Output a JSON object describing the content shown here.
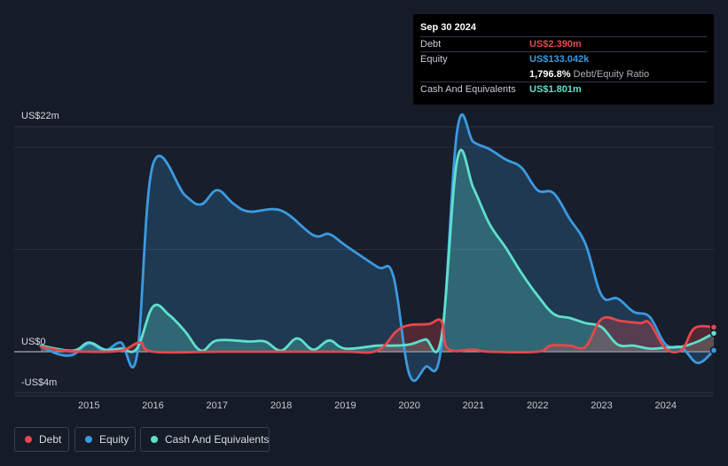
{
  "tooltip": {
    "date": "Sep 30 2024",
    "rows": [
      {
        "label": "Debt",
        "value": "US$2.390m",
        "color": "#e5484d"
      },
      {
        "label": "Equity",
        "value": "US$133.042k",
        "color": "#3b9ae1"
      },
      {
        "label": "",
        "value": "1,796.8%",
        "note": "Debt/Equity Ratio",
        "color": "#ffffff"
      },
      {
        "label": "Cash And Equivalents",
        "value": "US$1.801m",
        "color": "#5ee0cc"
      }
    ]
  },
  "legend": [
    {
      "label": "Debt",
      "color": "#e5484d"
    },
    {
      "label": "Equity",
      "color": "#3b9ae1"
    },
    {
      "label": "Cash And Equivalents",
      "color": "#5ee0cc"
    }
  ],
  "chart_data": {
    "type": "area",
    "y_tick_labels": [
      "US$22m",
      "US$0",
      "-US$4m"
    ],
    "x_tick_labels": [
      "2015",
      "2016",
      "2017",
      "2018",
      "2019",
      "2020",
      "2021",
      "2022",
      "2023",
      "2024"
    ],
    "ylim": [
      -4,
      22
    ],
    "xlim": [
      2014.25,
      2024.75
    ],
    "grid": true,
    "legend_position": "bottom-left",
    "series": [
      {
        "name": "Debt",
        "color": "#e5484d",
        "points": [
          [
            2014.25,
            0.5
          ],
          [
            2014.6,
            0.1
          ],
          [
            2015.0,
            0.0
          ],
          [
            2015.5,
            0.1
          ],
          [
            2015.8,
            0.9
          ],
          [
            2016.0,
            0.0
          ],
          [
            2017.0,
            0.0
          ],
          [
            2018.0,
            0.0
          ],
          [
            2019.0,
            0.0
          ],
          [
            2019.5,
            0.1
          ],
          [
            2019.8,
            2.0
          ],
          [
            2020.0,
            2.6
          ],
          [
            2020.3,
            2.7
          ],
          [
            2020.5,
            3.0
          ],
          [
            2020.6,
            0.3
          ],
          [
            2021.0,
            0.2
          ],
          [
            2021.25,
            0.0
          ],
          [
            2022.0,
            0.0
          ],
          [
            2022.2,
            0.6
          ],
          [
            2022.5,
            0.6
          ],
          [
            2022.75,
            0.5
          ],
          [
            2023.0,
            3.2
          ],
          [
            2023.3,
            3.0
          ],
          [
            2023.6,
            2.8
          ],
          [
            2023.75,
            2.8
          ],
          [
            2024.0,
            0.3
          ],
          [
            2024.25,
            0.2
          ],
          [
            2024.45,
            2.3
          ],
          [
            2024.75,
            2.4
          ]
        ]
      },
      {
        "name": "Equity",
        "color": "#3b9ae1",
        "points": [
          [
            2014.25,
            0.6
          ],
          [
            2014.5,
            -0.2
          ],
          [
            2014.75,
            -0.3
          ],
          [
            2015.0,
            0.8
          ],
          [
            2015.25,
            0.1
          ],
          [
            2015.5,
            0.9
          ],
          [
            2015.75,
            -0.4
          ],
          [
            2016.0,
            18.3
          ],
          [
            2016.5,
            15.3
          ],
          [
            2016.75,
            14.4
          ],
          [
            2017.0,
            15.8
          ],
          [
            2017.25,
            14.5
          ],
          [
            2017.5,
            13.7
          ],
          [
            2018.0,
            13.8
          ],
          [
            2018.5,
            11.4
          ],
          [
            2018.75,
            11.5
          ],
          [
            2019.0,
            10.4
          ],
          [
            2019.5,
            8.3
          ],
          [
            2019.75,
            7.4
          ],
          [
            2020.0,
            -2.2
          ],
          [
            2020.25,
            -1.5
          ],
          [
            2020.5,
            0.5
          ],
          [
            2020.75,
            21.8
          ],
          [
            2021.0,
            20.5
          ],
          [
            2021.25,
            19.8
          ],
          [
            2021.5,
            18.8
          ],
          [
            2021.75,
            18.0
          ],
          [
            2022.0,
            15.8
          ],
          [
            2022.25,
            15.5
          ],
          [
            2022.5,
            13.0
          ],
          [
            2022.75,
            10.5
          ],
          [
            2023.0,
            5.5
          ],
          [
            2023.25,
            5.2
          ],
          [
            2023.5,
            3.9
          ],
          [
            2023.75,
            3.4
          ],
          [
            2024.0,
            0.7
          ],
          [
            2024.25,
            0.4
          ],
          [
            2024.5,
            -1.1
          ],
          [
            2024.75,
            0.13
          ]
        ]
      },
      {
        "name": "Cash And Equivalents",
        "color": "#5ee0cc",
        "points": [
          [
            2014.25,
            0.6
          ],
          [
            2014.75,
            0.1
          ],
          [
            2015.0,
            0.9
          ],
          [
            2015.25,
            0.2
          ],
          [
            2015.5,
            0.3
          ],
          [
            2015.75,
            0.3
          ],
          [
            2016.0,
            4.4
          ],
          [
            2016.25,
            3.6
          ],
          [
            2016.5,
            2.0
          ],
          [
            2016.75,
            0.1
          ],
          [
            2017.0,
            1.1
          ],
          [
            2017.5,
            1.0
          ],
          [
            2017.75,
            1.0
          ],
          [
            2018.0,
            0.1
          ],
          [
            2018.25,
            1.3
          ],
          [
            2018.5,
            0.2
          ],
          [
            2018.75,
            1.1
          ],
          [
            2019.0,
            0.3
          ],
          [
            2019.5,
            0.6
          ],
          [
            2019.75,
            0.6
          ],
          [
            2020.0,
            0.7
          ],
          [
            2020.25,
            1.2
          ],
          [
            2020.5,
            1.4
          ],
          [
            2020.75,
            18.9
          ],
          [
            2021.0,
            16.0
          ],
          [
            2021.25,
            12.5
          ],
          [
            2021.5,
            10.2
          ],
          [
            2021.75,
            7.7
          ],
          [
            2022.0,
            5.5
          ],
          [
            2022.25,
            3.7
          ],
          [
            2022.5,
            3.3
          ],
          [
            2022.75,
            2.8
          ],
          [
            2023.0,
            2.4
          ],
          [
            2023.25,
            0.7
          ],
          [
            2023.5,
            0.6
          ],
          [
            2023.75,
            0.3
          ],
          [
            2024.0,
            0.4
          ],
          [
            2024.25,
            0.5
          ],
          [
            2024.5,
            1.0
          ],
          [
            2024.75,
            1.8
          ]
        ]
      }
    ]
  }
}
